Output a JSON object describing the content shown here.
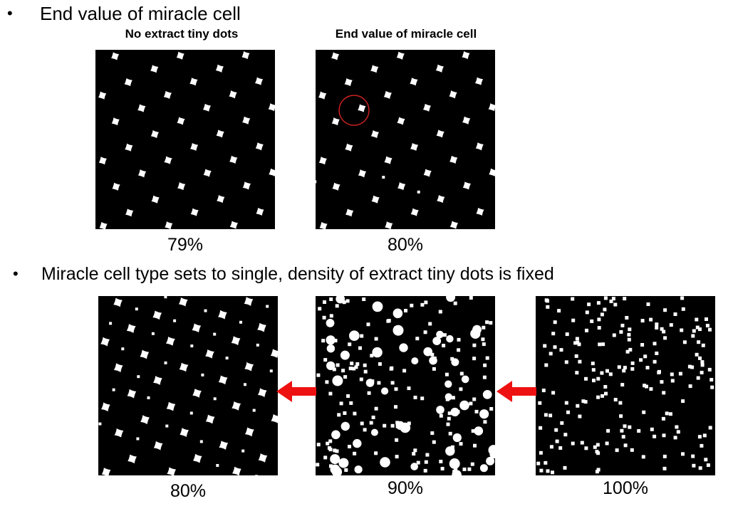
{
  "section1": {
    "bullet": "•",
    "heading": "End value of miracle cell",
    "panels": [
      {
        "caption": "No extract tiny dots",
        "percent": "79%"
      },
      {
        "caption": "End value of miracle cell",
        "percent": "80%"
      }
    ]
  },
  "section2": {
    "bullet": "•",
    "heading": "Miracle cell type sets to single, density of extract tiny dots is fixed",
    "panels": [
      {
        "percent": "80%"
      },
      {
        "percent": "90%"
      },
      {
        "percent": "100%"
      }
    ]
  },
  "colors": {
    "arrow": "#ee1111",
    "highlight_circle": "#cc2222",
    "panel_bg": "#000000",
    "dot": "#ffffff"
  }
}
